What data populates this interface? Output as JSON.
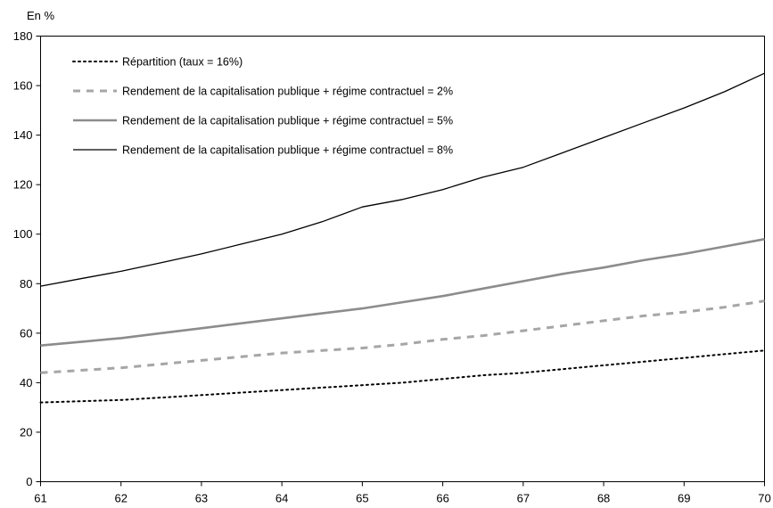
{
  "chart_data": {
    "type": "line",
    "title": "",
    "xlabel": "",
    "ylabel": "",
    "y_unit_label": "En %",
    "xlim": [
      61,
      70
    ],
    "ylim": [
      0,
      180
    ],
    "x_ticks": [
      61,
      62,
      63,
      64,
      65,
      66,
      67,
      68,
      69,
      70
    ],
    "y_ticks": [
      0,
      20,
      40,
      60,
      80,
      100,
      120,
      140,
      160,
      180
    ],
    "grid": false,
    "legend_position": "top-left",
    "x": [
      61,
      61.5,
      62,
      62.5,
      63,
      63.5,
      64,
      64.5,
      65,
      65.5,
      66,
      66.5,
      67,
      67.5,
      68,
      68.5,
      69,
      69.5,
      70
    ],
    "series": [
      {
        "name": "Répartition (taux = 16%)",
        "style": "dotted",
        "color": "#000000",
        "values": [
          32,
          32.5,
          33,
          34,
          35,
          36,
          37,
          38,
          39,
          40,
          41.5,
          43,
          44,
          45.5,
          47,
          48.5,
          50,
          51.5,
          53
        ]
      },
      {
        "name": "Rendement de la capitalisation publique + régime contractuel = 2%",
        "style": "dashed",
        "color": "#a6a6a6",
        "values": [
          44,
          45,
          46,
          47.5,
          49,
          50.5,
          52,
          53,
          54,
          55.5,
          57.5,
          59,
          61,
          63,
          65,
          67,
          68.5,
          70.5,
          73
        ]
      },
      {
        "name": "Rendement de la capitalisation publique + régime contractuel = 5%",
        "style": "solid-thick",
        "color": "#8c8c8c",
        "values": [
          55,
          56.5,
          58,
          60,
          62,
          64,
          66,
          68,
          70,
          72.5,
          75,
          78,
          81,
          84,
          86.5,
          89.5,
          92,
          95,
          98
        ]
      },
      {
        "name": "Rendement de la capitalisation publique + régime contractuel = 8%",
        "style": "solid-thin",
        "color": "#000000",
        "values": [
          79,
          82,
          85,
          88.5,
          92,
          96,
          100,
          105,
          111,
          114,
          118,
          123,
          127,
          133,
          139,
          145,
          151,
          157.5,
          165
        ]
      }
    ]
  }
}
